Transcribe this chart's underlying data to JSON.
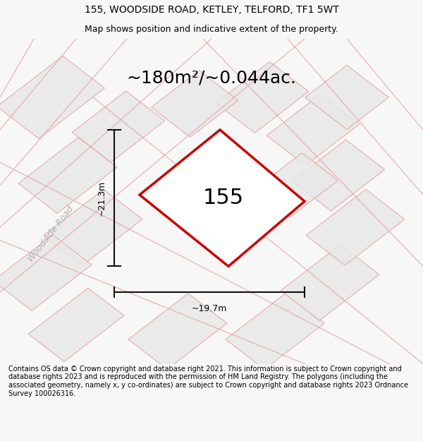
{
  "title_line1": "155, WOODSIDE ROAD, KETLEY, TELFORD, TF1 5WT",
  "title_line2": "Map shows position and indicative extent of the property.",
  "area_text": "~180m²/~0.044ac.",
  "property_number": "155",
  "dim_width": "~19.7m",
  "dim_height": "~21.3m",
  "road_label": "Woodside Road",
  "footer_text": "Contains OS data © Crown copyright and database right 2021. This information is subject to Crown copyright and database rights 2023 and is reproduced with the permission of HM Land Registry. The polygons (including the associated geometry, namely x, y co-ordinates) are subject to Crown copyright and database rights 2023 Ordnance Survey 100026316.",
  "bg_color": "#f7f7f7",
  "map_bg_color": "#efefef",
  "plot_fill_color": "#e8e8e8",
  "plot_outline_color": "#e8a0a0",
  "highlight_color": "#cc0000",
  "dim_line_color": "#111111",
  "road_label_color": "#b0b0b0",
  "title_fontsize": 10,
  "subtitle_fontsize": 9,
  "area_fontsize": 18,
  "prop_num_fontsize": 22,
  "dim_fontsize": 9,
  "road_fontsize": 9,
  "footer_fontsize": 7
}
